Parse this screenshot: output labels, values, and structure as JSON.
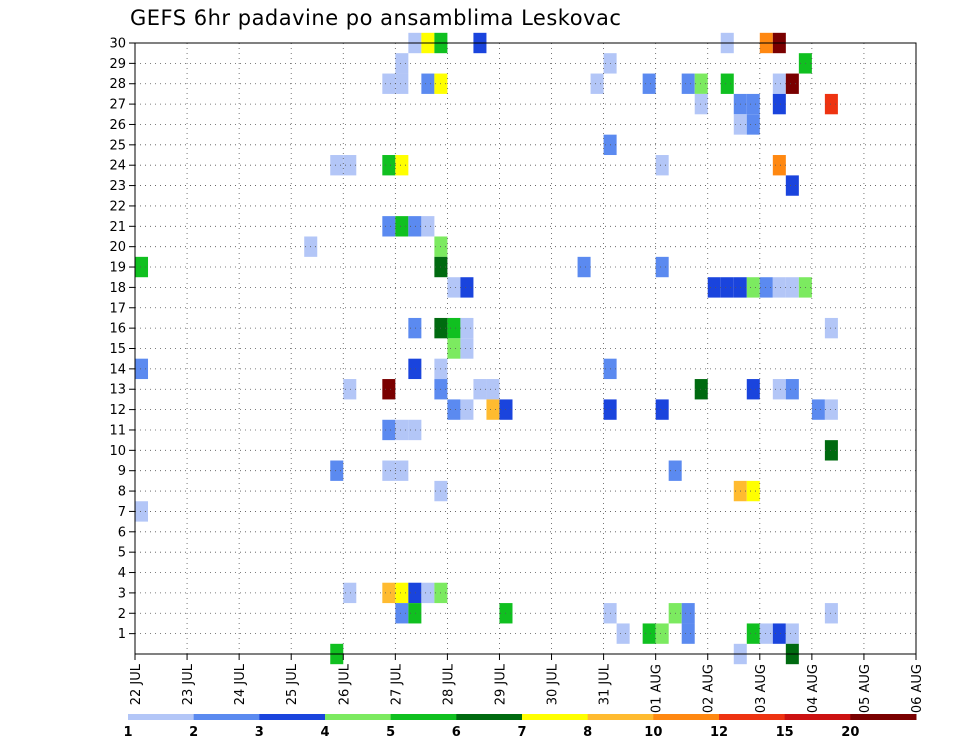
{
  "chart_data": {
    "type": "heatmap",
    "title": "GEFS 6hr padavine po ansamblima Leskovac",
    "xlabel": "",
    "ylabel": "",
    "x_tick_labels": [
      "22 JUL",
      "23 JUL",
      "24 JUL",
      "25 JUL",
      "26 JUL",
      "27 JUL",
      "28 JUL",
      "29 JUL",
      "30 JUL",
      "31 JUL",
      "01 AUG",
      "02 AUG",
      "03 AUG",
      "04 AUG",
      "05 AUG",
      "06 AUG"
    ],
    "y_tick_labels": [
      "1",
      "2",
      "3",
      "4",
      "5",
      "6",
      "7",
      "8",
      "9",
      "10",
      "11",
      "12",
      "13",
      "14",
      "15",
      "16",
      "17",
      "18",
      "19",
      "20",
      "21",
      "22",
      "23",
      "24",
      "25",
      "26",
      "27",
      "28",
      "29",
      "30"
    ],
    "x_range_days": [
      0,
      15
    ],
    "y_range": [
      0,
      30
    ],
    "grid": true,
    "time_step_hours": 6,
    "legend": {
      "placement": "bottom",
      "tick_labels": [
        "1",
        "2",
        "3",
        "4",
        "5",
        "6",
        "7",
        "8",
        "10",
        "12",
        "15",
        "20"
      ],
      "colors": [
        "#b3c6f7",
        "#5b8af0",
        "#1a44dd",
        "#7cea60",
        "#10c020",
        "#006a10",
        "#ffff00",
        "#ffbb30",
        "#ff8811",
        "#ee3311",
        "#cc1111",
        "#7a0000"
      ]
    },
    "cells": [
      [
        12.25,
        30,
        1
      ],
      [
        12.5,
        30,
        7
      ],
      [
        12.75,
        30,
        5
      ],
      [
        13.5,
        30,
        3
      ],
      [
        18.25,
        30,
        1
      ],
      [
        19.0,
        30,
        9
      ],
      [
        19.25,
        30,
        12
      ],
      [
        12.0,
        29,
        1
      ],
      [
        16.0,
        29,
        1
      ],
      [
        19.75,
        29,
        5
      ],
      [
        11.75,
        28,
        1
      ],
      [
        12.0,
        28,
        1
      ],
      [
        12.5,
        28,
        2
      ],
      [
        12.75,
        28,
        7
      ],
      [
        15.75,
        28,
        1
      ],
      [
        16.75,
        28,
        2
      ],
      [
        17.5,
        28,
        2
      ],
      [
        17.75,
        28,
        4
      ],
      [
        18.25,
        28,
        5
      ],
      [
        19.25,
        28,
        1
      ],
      [
        19.5,
        28,
        12
      ],
      [
        17.75,
        27,
        1
      ],
      [
        18.5,
        27,
        2
      ],
      [
        18.75,
        27,
        2
      ],
      [
        19.25,
        27,
        3
      ],
      [
        20.25,
        27,
        10
      ],
      [
        18.5,
        26,
        1
      ],
      [
        18.75,
        26,
        2
      ],
      [
        16.0,
        25,
        2
      ],
      [
        10.75,
        24,
        1
      ],
      [
        11.0,
        24,
        1
      ],
      [
        11.75,
        24,
        5
      ],
      [
        12.0,
        24,
        7
      ],
      [
        17.0,
        24,
        1
      ],
      [
        19.25,
        24,
        9
      ],
      [
        19.5,
        23,
        3
      ],
      [
        11.75,
        21,
        2
      ],
      [
        12.0,
        21,
        5
      ],
      [
        12.25,
        21,
        2
      ],
      [
        12.5,
        21,
        1
      ],
      [
        10.25,
        20,
        1
      ],
      [
        12.75,
        20,
        4
      ],
      [
        7.0,
        19,
        5
      ],
      [
        12.75,
        19,
        6
      ],
      [
        15.5,
        19,
        2
      ],
      [
        17.0,
        19,
        2
      ],
      [
        13.0,
        18,
        1
      ],
      [
        13.25,
        18,
        3
      ],
      [
        18.0,
        18,
        3
      ],
      [
        18.25,
        18,
        3
      ],
      [
        18.5,
        18,
        3
      ],
      [
        18.75,
        18,
        4
      ],
      [
        19.0,
        18,
        2
      ],
      [
        19.25,
        18,
        1
      ],
      [
        19.5,
        18,
        1
      ],
      [
        19.75,
        18,
        4
      ],
      [
        12.25,
        16,
        2
      ],
      [
        12.75,
        16,
        6
      ],
      [
        13.0,
        16,
        5
      ],
      [
        13.25,
        16,
        1
      ],
      [
        20.25,
        16,
        1
      ],
      [
        13.0,
        15,
        4
      ],
      [
        13.25,
        15,
        1
      ],
      [
        7.0,
        14,
        2
      ],
      [
        12.25,
        14,
        3
      ],
      [
        12.75,
        14,
        1
      ],
      [
        16.0,
        14,
        2
      ],
      [
        11.0,
        13,
        1
      ],
      [
        11.75,
        13,
        12
      ],
      [
        12.75,
        13,
        2
      ],
      [
        13.5,
        13,
        1
      ],
      [
        13.75,
        13,
        1
      ],
      [
        17.75,
        13,
        6
      ],
      [
        18.75,
        13,
        3
      ],
      [
        19.25,
        13,
        1
      ],
      [
        19.5,
        13,
        2
      ],
      [
        13.0,
        12,
        2
      ],
      [
        13.25,
        12,
        1
      ],
      [
        13.75,
        12,
        8
      ],
      [
        14.0,
        12,
        3
      ],
      [
        16.0,
        12,
        3
      ],
      [
        17.0,
        12,
        3
      ],
      [
        20.0,
        12,
        2
      ],
      [
        20.25,
        12,
        1
      ],
      [
        11.75,
        11,
        2
      ],
      [
        12.0,
        11,
        1
      ],
      [
        12.25,
        11,
        1
      ],
      [
        20.25,
        10,
        6
      ],
      [
        10.75,
        9,
        2
      ],
      [
        11.75,
        9,
        1
      ],
      [
        12.0,
        9,
        1
      ],
      [
        17.25,
        9,
        2
      ],
      [
        12.75,
        8,
        1
      ],
      [
        18.5,
        8,
        8
      ],
      [
        18.75,
        8,
        7
      ],
      [
        7.0,
        7,
        1
      ],
      [
        11.0,
        3,
        1
      ],
      [
        11.75,
        3,
        8
      ],
      [
        12.0,
        3,
        7
      ],
      [
        12.25,
        3,
        3
      ],
      [
        12.5,
        3,
        1
      ],
      [
        12.75,
        3,
        4
      ],
      [
        12.0,
        2,
        2
      ],
      [
        12.25,
        2,
        5
      ],
      [
        14.0,
        2,
        5
      ],
      [
        16.0,
        2,
        1
      ],
      [
        17.25,
        2,
        4
      ],
      [
        17.5,
        2,
        2
      ],
      [
        20.25,
        2,
        1
      ],
      [
        16.25,
        1,
        1
      ],
      [
        16.75,
        1,
        5
      ],
      [
        17.0,
        1,
        4
      ],
      [
        17.5,
        1,
        2
      ],
      [
        18.75,
        1,
        5
      ],
      [
        19.0,
        1,
        1
      ],
      [
        19.25,
        1,
        3
      ],
      [
        19.5,
        1,
        1
      ],
      [
        10.75,
        0,
        5
      ],
      [
        18.5,
        0,
        1
      ],
      [
        19.5,
        0,
        6
      ]
    ]
  }
}
